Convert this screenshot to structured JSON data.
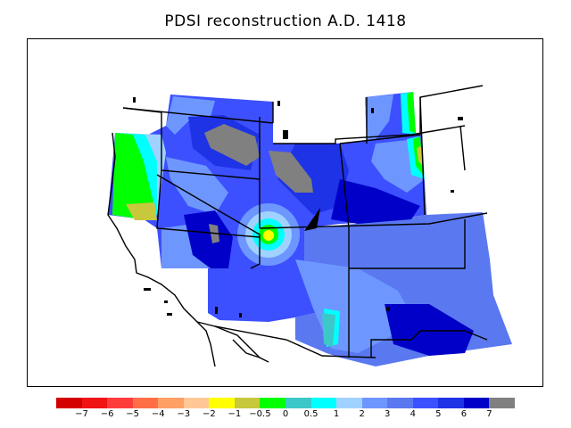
{
  "title": "PDSI reconstruction A.D. 1418",
  "colorbar": {
    "colors": [
      "#d40000",
      "#f01414",
      "#ff3c3c",
      "#ff6e46",
      "#ffa064",
      "#ffc896",
      "#ffff00",
      "#c8c83c",
      "#00ff00",
      "#3cc8c8",
      "#00ffff",
      "#a0d2ff",
      "#6e96ff",
      "#5a78f0",
      "#3c50ff",
      "#1e32e6",
      "#0000c8",
      "#808080"
    ],
    "labels": [
      "−7",
      "−6",
      "−5",
      "−4",
      "−3",
      "−2",
      "−1",
      "−0.5",
      "0",
      "0.5",
      "1",
      "2",
      "3",
      "4",
      "5",
      "6",
      "7"
    ]
  },
  "map": {
    "region": "Western United States",
    "legend_meaning": "Palmer Drought Severity Index"
  }
}
